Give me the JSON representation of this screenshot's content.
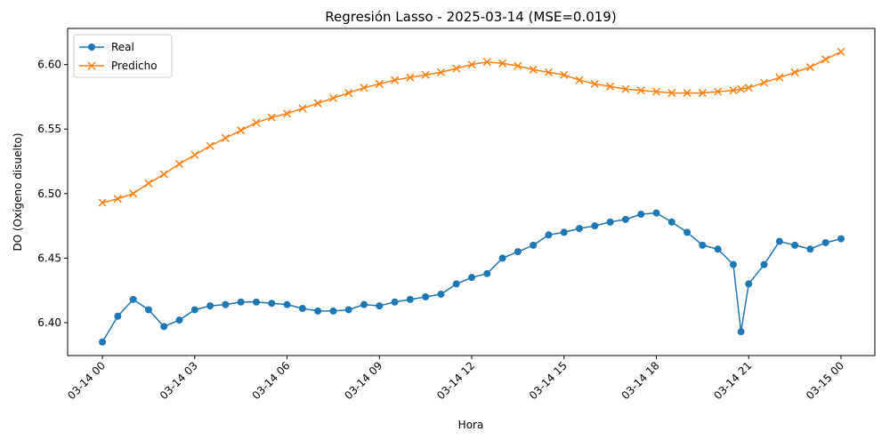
{
  "chart_data": {
    "type": "line",
    "title": "Regresión Lasso - 2025-03-14 (MSE=0.019)",
    "x_label": "Hora",
    "y_label": "DO (Oxígeno disuelto)",
    "x": [
      0,
      0.5,
      1,
      1.5,
      2,
      2.5,
      3,
      3.5,
      4,
      4.5,
      5,
      5.5,
      6,
      6.5,
      7,
      7.5,
      8,
      8.5,
      9,
      9.5,
      10,
      10.5,
      11,
      11.5,
      12,
      12.5,
      13,
      13.5,
      14,
      14.5,
      15,
      15.5,
      16,
      16.5,
      17,
      17.5,
      18,
      18.5,
      19,
      19.5,
      20,
      20.5,
      20.75,
      21,
      21.5,
      22,
      22.5,
      23,
      23.5,
      24
    ],
    "series": [
      {
        "name": "Real",
        "color": "#1f77b4",
        "marker": "o",
        "values": [
          6.385,
          6.405,
          6.418,
          6.41,
          6.397,
          6.402,
          6.41,
          6.413,
          6.414,
          6.416,
          6.416,
          6.415,
          6.414,
          6.411,
          6.409,
          6.409,
          6.41,
          6.414,
          6.413,
          6.416,
          6.418,
          6.42,
          6.422,
          6.43,
          6.435,
          6.438,
          6.45,
          6.455,
          6.46,
          6.468,
          6.47,
          6.473,
          6.475,
          6.478,
          6.48,
          6.484,
          6.485,
          6.478,
          6.47,
          6.46,
          6.457,
          6.445,
          6.393,
          6.43,
          6.445,
          6.463,
          6.46,
          6.457,
          6.462,
          6.465
        ]
      },
      {
        "name": "Predicho",
        "color": "#ff7f0e",
        "marker": "x",
        "values": [
          6.493,
          6.496,
          6.5,
          6.508,
          6.515,
          6.523,
          6.53,
          6.537,
          6.543,
          6.549,
          6.555,
          6.559,
          6.562,
          6.566,
          6.57,
          6.574,
          6.578,
          6.582,
          6.585,
          6.588,
          6.59,
          6.592,
          6.594,
          6.597,
          6.6,
          6.602,
          6.601,
          6.599,
          6.596,
          6.594,
          6.592,
          6.588,
          6.585,
          6.583,
          6.581,
          6.58,
          6.579,
          6.578,
          6.578,
          6.578,
          6.579,
          6.58,
          6.581,
          6.582,
          6.586,
          6.59,
          6.594,
          6.598,
          6.604,
          6.61
        ]
      }
    ],
    "xlim": [
      -1.13,
      25.1
    ],
    "ylim": [
      6.3745,
      6.628
    ],
    "xticks": [
      {
        "value": 0,
        "label": "03-14 00"
      },
      {
        "value": 3,
        "label": "03-14 03"
      },
      {
        "value": 6,
        "label": "03-14 06"
      },
      {
        "value": 9,
        "label": "03-14 09"
      },
      {
        "value": 12,
        "label": "03-14 12"
      },
      {
        "value": 15,
        "label": "03-14 15"
      },
      {
        "value": 18,
        "label": "03-14 18"
      },
      {
        "value": 21,
        "label": "03-14 21"
      },
      {
        "value": 24,
        "label": "03-15 00"
      }
    ],
    "yticks": [
      {
        "value": 6.4,
        "label": "6.40"
      },
      6.45,
      {
        "value": 6.5,
        "label": "6.50"
      },
      6.55,
      {
        "value": 6.6,
        "label": "6.60"
      }
    ],
    "legend": "upper left"
  }
}
